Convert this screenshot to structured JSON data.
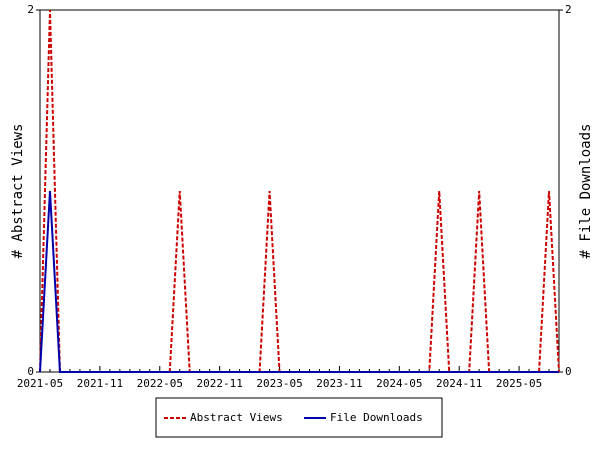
{
  "chart_data": {
    "type": "line",
    "categories": [
      "2021-05",
      null,
      null,
      null,
      null,
      null,
      "2021-11",
      null,
      null,
      null,
      null,
      null,
      "2022-05",
      null,
      null,
      null,
      null,
      null,
      "2022-11",
      null,
      null,
      null,
      null,
      null,
      "2023-05",
      null,
      null,
      null,
      null,
      null,
      "2023-11",
      null,
      null,
      null,
      null,
      null,
      "2024-05",
      null,
      null,
      null,
      null,
      null,
      "2024-11",
      null,
      null,
      null,
      null,
      null,
      "2025-05",
      null,
      null,
      null,
      null
    ],
    "series": [
      {
        "name": "Abstract Views",
        "color": "#cc0000",
        "dashed": true,
        "values": [
          0,
          2,
          0,
          0,
          0,
          0,
          0,
          0,
          0,
          0,
          0,
          0,
          0,
          0,
          1,
          0,
          0,
          0,
          0,
          0,
          0,
          0,
          0,
          1,
          0,
          0,
          0,
          0,
          0,
          0,
          0,
          0,
          0,
          0,
          0,
          0,
          0,
          0,
          0,
          0,
          1,
          0,
          0,
          0,
          1,
          0,
          0,
          0,
          0,
          0,
          0,
          1,
          0
        ]
      },
      {
        "name": "File Downloads",
        "color": "#0000aa",
        "dashed": false,
        "axis": "y2",
        "values": [
          0,
          1,
          0,
          0,
          0,
          0,
          0,
          0,
          0,
          0,
          0,
          0,
          0,
          0,
          0,
          0,
          0,
          0,
          0,
          0,
          0,
          0,
          0,
          0,
          0,
          0,
          0,
          0,
          0,
          0,
          0,
          0,
          0,
          0,
          0,
          0,
          0,
          0,
          0,
          0,
          0,
          0,
          0,
          0,
          0,
          0,
          0,
          0,
          0,
          0,
          0,
          0,
          0
        ]
      }
    ],
    "ylabel": "# Abstract Views",
    "y2label": "# File Downloads",
    "ylim": [
      0,
      2
    ],
    "yticks": [
      0,
      2
    ],
    "y2lim": [
      0,
      2
    ],
    "y2ticks": [
      0,
      2
    ]
  }
}
